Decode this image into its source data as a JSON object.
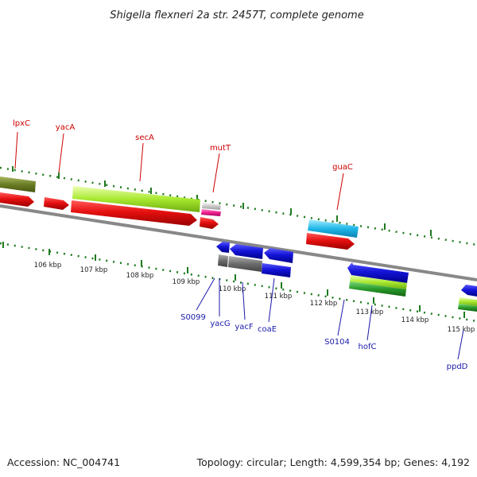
{
  "title": "Shigella flexneri 2a str. 2457T, complete genome",
  "footer": {
    "accession": "Accession: NC_004741",
    "summary": "Topology: circular; Length: 4,599,354 bp; Genes: 4,192"
  },
  "colors": {
    "forward_cds": "#e61010",
    "reverse_cds": "#1414d8",
    "backbone": "#888888",
    "tick": "#1f7a1f",
    "label_forward": "#cc0000",
    "label_reverse": "#1a1aaa"
  },
  "scale_labels": [
    "106 kbp",
    "107 kbp",
    "108 kbp",
    "109 kbp",
    "110 kbp",
    "111 kbp",
    "112 kbp",
    "113 kbp",
    "114 kbp",
    "115 kbp"
  ],
  "forward_genes": [
    "lpxC",
    "yacA",
    "secA",
    "mutT",
    "guaC"
  ],
  "reverse_genes": [
    "S0099",
    "yacG",
    "yacF",
    "coaE",
    "S0104",
    "hofC",
    "ppdD"
  ]
}
